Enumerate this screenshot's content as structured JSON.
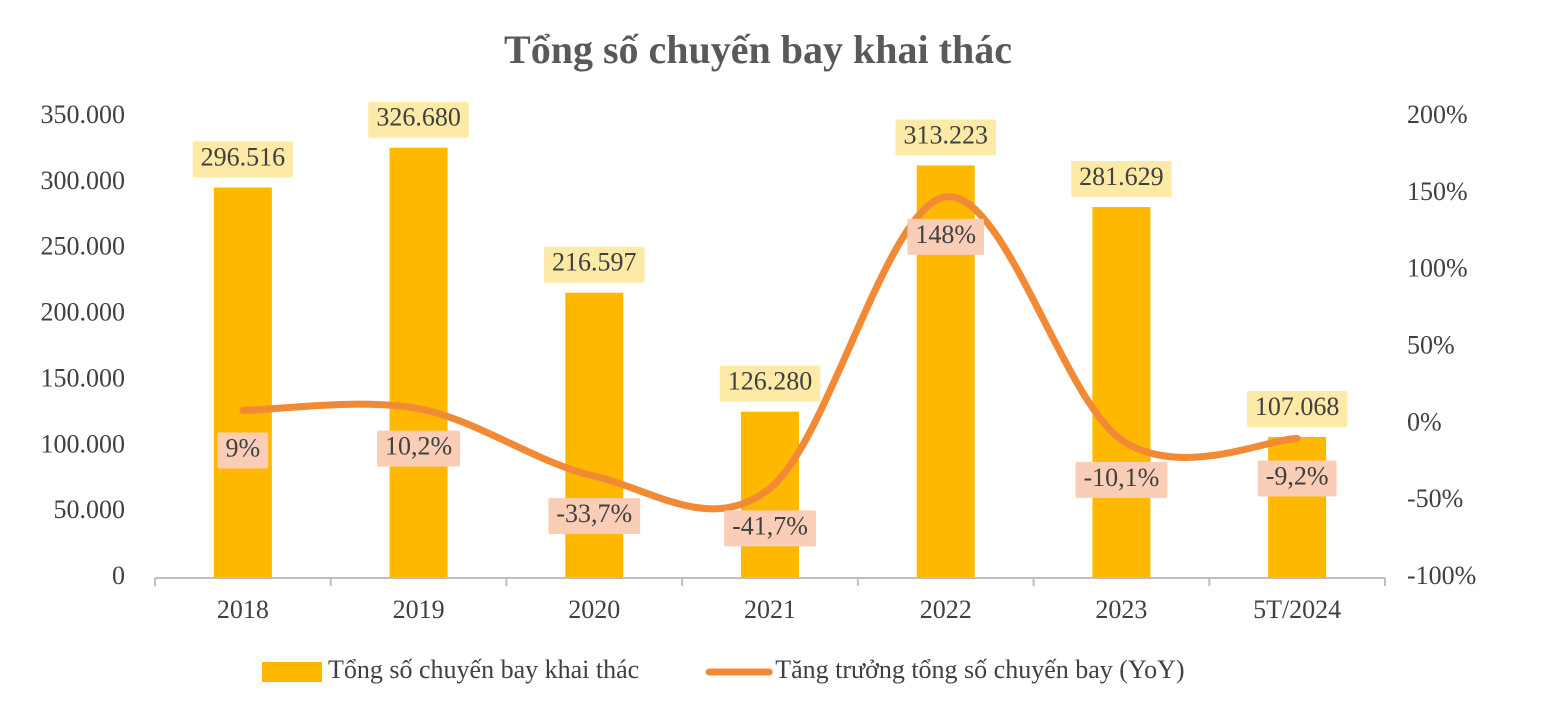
{
  "chart_data": {
    "type": "combo",
    "title": "Tổng số chuyến bay khai thác",
    "categories": [
      "2018",
      "2019",
      "2020",
      "2021",
      "2022",
      "2023",
      "5T/2024"
    ],
    "series": [
      {
        "name": "Tổng số chuyến bay khai thác",
        "type": "bar",
        "color": "#ffb800",
        "values": [
          296516,
          326680,
          216597,
          126280,
          313223,
          281629,
          107068
        ],
        "value_labels": [
          "296.516",
          "326.680",
          "216.597",
          "126.280",
          "313.223",
          "281.629",
          "107.068"
        ]
      },
      {
        "name": "Tăng trưởng tổng số chuyến bay (YoY)",
        "type": "line",
        "axis": "y2",
        "color": "#f28a35",
        "values": [
          9,
          10.2,
          -33.7,
          -41.7,
          148,
          -10.1,
          -9.2
        ],
        "value_labels": [
          "9%",
          "10,2%",
          "-33,7%",
          "-41,7%",
          "148%",
          "-10,1%",
          "-9,2%"
        ]
      }
    ],
    "ylim": [
      0,
      350000
    ],
    "yticks": [
      0,
      {
        "value": 50000,
        "label": "50.000"
      },
      {
        "value": 100000,
        "label": "100.000"
      },
      {
        "value": 150000,
        "label": "150.000"
      },
      {
        "value": 200000,
        "label": "200.000"
      },
      {
        "value": 250000,
        "label": "250.000"
      },
      {
        "value": 300000,
        "label": "300.000"
      },
      {
        "value": 350000,
        "label": "350.000"
      }
    ],
    "y2lim": [
      -100,
      200
    ],
    "y2ticks": [
      {
        "value": -100,
        "label": "-100%"
      },
      {
        "value": -50,
        "label": "-50%"
      },
      {
        "value": 0,
        "label": "0%"
      },
      {
        "value": 50,
        "label": "50%"
      },
      {
        "value": 100,
        "label": "100%"
      },
      {
        "value": 150,
        "label": "150%"
      },
      {
        "value": 200,
        "label": "200%"
      }
    ],
    "legend": "bottom"
  }
}
